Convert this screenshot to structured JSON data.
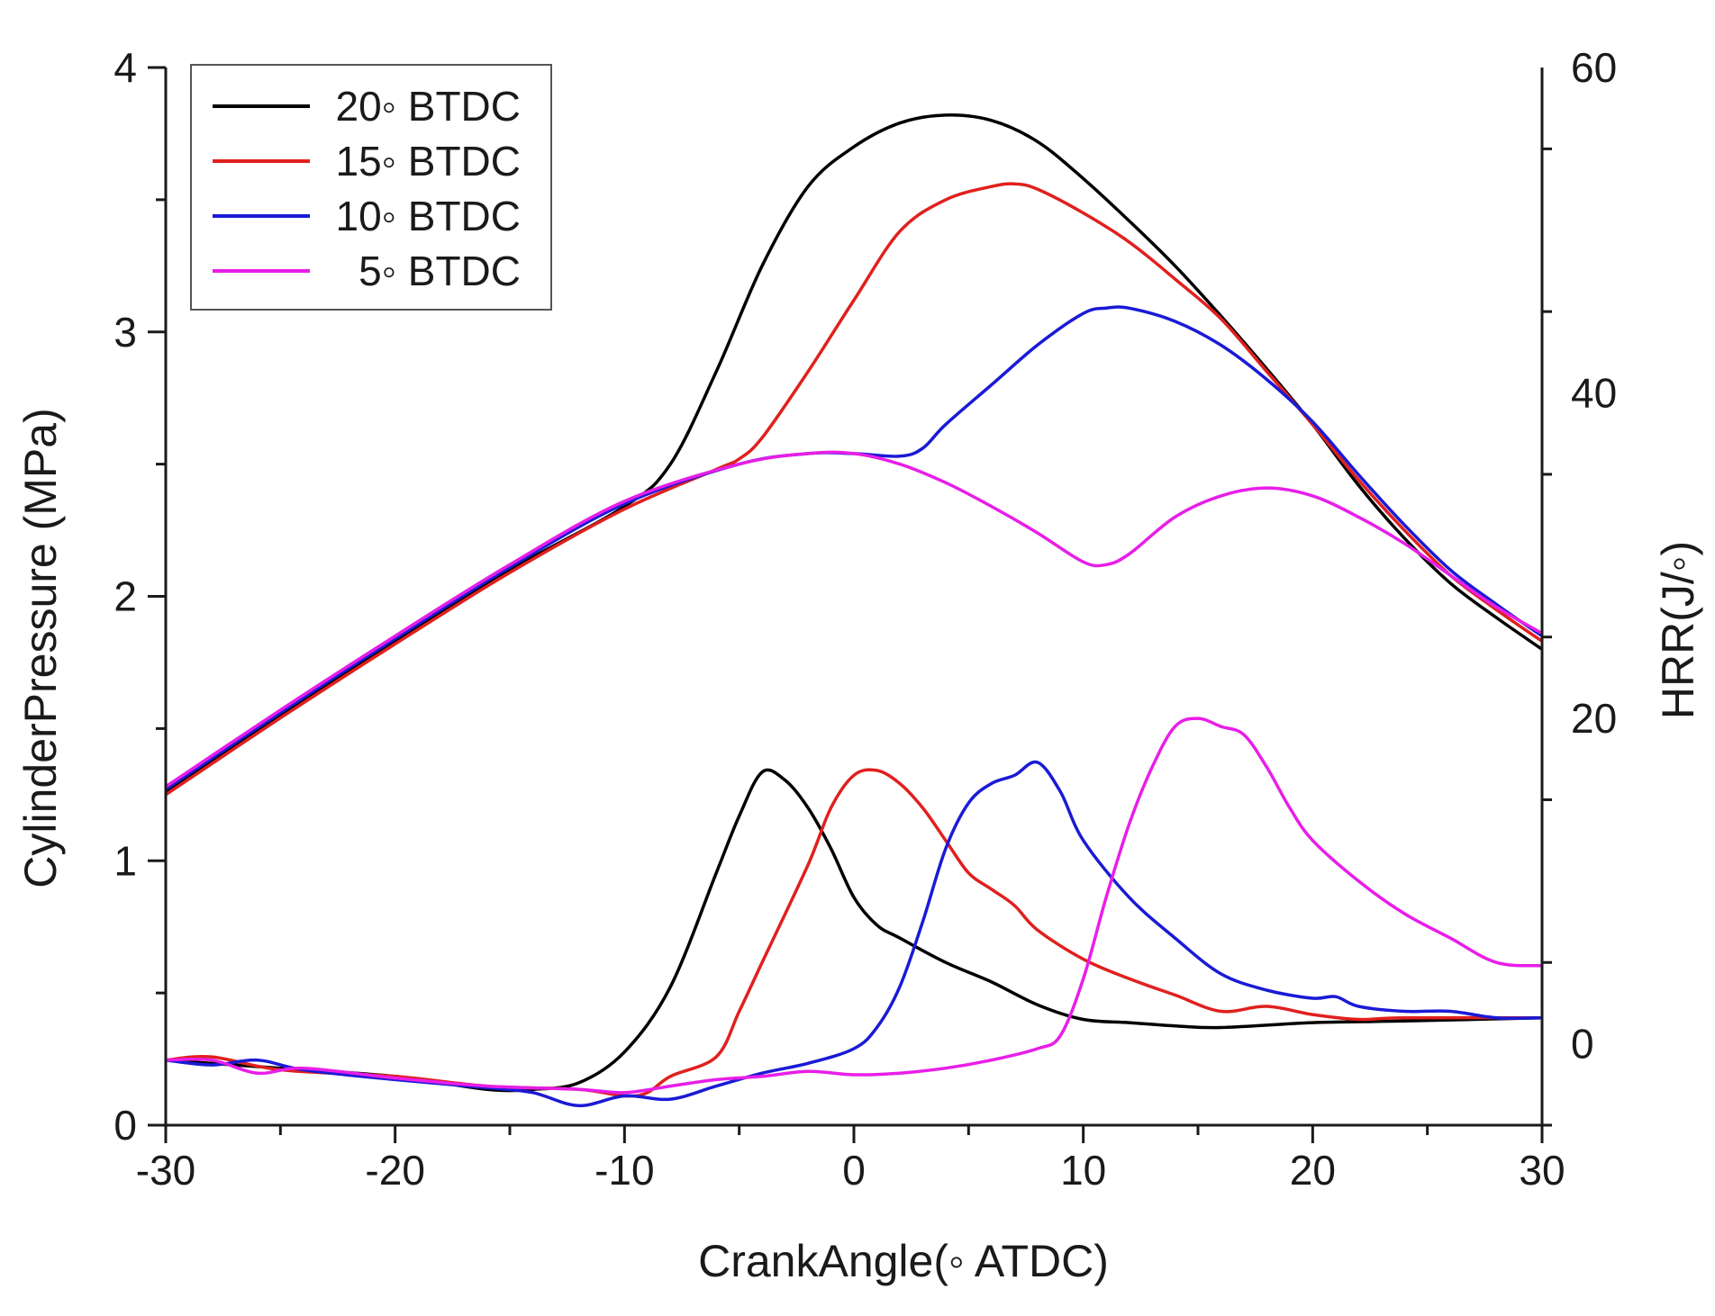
{
  "chart_data": {
    "type": "line",
    "xlabel": "CrankAngle(◦ ATDC)",
    "ylabel_left": "CylinderPressure (MPa)",
    "ylabel_right": "HRR(J/◦)",
    "xlim": [
      -30,
      30
    ],
    "ylim_left": [
      0,
      4
    ],
    "ylim_right": [
      -5,
      60
    ],
    "x_ticks": [
      -30,
      -20,
      -10,
      0,
      10,
      20,
      30
    ],
    "x_tick_labels": [
      "-30",
      "-20",
      "-10",
      "0",
      "10",
      "20",
      "30"
    ],
    "y_left_ticks": [
      0,
      1,
      2,
      3,
      4
    ],
    "y_left_tick_labels": [
      "0",
      "1",
      "2",
      "3",
      "4"
    ],
    "y_right_ticks": [
      0,
      20,
      40,
      60
    ],
    "y_right_tick_labels": [
      "0",
      "20",
      "40",
      "60"
    ],
    "grid": false,
    "legend_position": "top-left",
    "series": [
      {
        "name": "20◦ BTDC",
        "color": "#000000",
        "pressure": [
          [
            -30,
            1.26
          ],
          [
            -25,
            1.55
          ],
          [
            -20,
            1.83
          ],
          [
            -15,
            2.1
          ],
          [
            -10,
            2.34
          ],
          [
            -8,
            2.5
          ],
          [
            -6,
            2.85
          ],
          [
            -4,
            3.25
          ],
          [
            -2,
            3.55
          ],
          [
            0,
            3.7
          ],
          [
            2,
            3.79
          ],
          [
            4,
            3.82
          ],
          [
            6,
            3.8
          ],
          [
            8,
            3.72
          ],
          [
            10,
            3.58
          ],
          [
            12,
            3.42
          ],
          [
            14,
            3.25
          ],
          [
            16,
            3.06
          ],
          [
            18,
            2.86
          ],
          [
            20,
            2.65
          ],
          [
            22,
            2.42
          ],
          [
            24,
            2.22
          ],
          [
            26,
            2.05
          ],
          [
            28,
            1.92
          ],
          [
            30,
            1.8
          ]
        ],
        "hrr": [
          [
            -30,
            -1
          ],
          [
            -25,
            -1.5
          ],
          [
            -20,
            -2
          ],
          [
            -16,
            -2.8
          ],
          [
            -14,
            -2.8
          ],
          [
            -12,
            -2.4
          ],
          [
            -10,
            -0.5
          ],
          [
            -8,
            3.5
          ],
          [
            -6,
            10.5
          ],
          [
            -5,
            14
          ],
          [
            -4,
            16.7
          ],
          [
            -3,
            16.2
          ],
          [
            -2,
            14.5
          ],
          [
            -1,
            12
          ],
          [
            0,
            9
          ],
          [
            1,
            7.3
          ],
          [
            2,
            6.5
          ],
          [
            4,
            5
          ],
          [
            6,
            3.8
          ],
          [
            8,
            2.4
          ],
          [
            10,
            1.5
          ],
          [
            12,
            1.3
          ],
          [
            14,
            1.1
          ],
          [
            16,
            1
          ],
          [
            20,
            1.3
          ],
          [
            24,
            1.4
          ],
          [
            30,
            1.6
          ]
        ]
      },
      {
        "name": "15◦ BTDC",
        "color": "#e0201e",
        "pressure": [
          [
            -30,
            1.25
          ],
          [
            -25,
            1.54
          ],
          [
            -20,
            1.82
          ],
          [
            -15,
            2.09
          ],
          [
            -10,
            2.33
          ],
          [
            -6,
            2.48
          ],
          [
            -5,
            2.52
          ],
          [
            -4,
            2.6
          ],
          [
            -2,
            2.85
          ],
          [
            0,
            3.12
          ],
          [
            2,
            3.38
          ],
          [
            4,
            3.5
          ],
          [
            6,
            3.55
          ],
          [
            7,
            3.56
          ],
          [
            8,
            3.54
          ],
          [
            10,
            3.45
          ],
          [
            12,
            3.34
          ],
          [
            14,
            3.2
          ],
          [
            16,
            3.05
          ],
          [
            18,
            2.85
          ],
          [
            20,
            2.65
          ],
          [
            22,
            2.44
          ],
          [
            24,
            2.25
          ],
          [
            26,
            2.08
          ],
          [
            28,
            1.95
          ],
          [
            30,
            1.83
          ]
        ],
        "hrr": [
          [
            -30,
            -1
          ],
          [
            -28,
            -0.8
          ],
          [
            -25,
            -1.6
          ],
          [
            -20,
            -2
          ],
          [
            -16,
            -2.6
          ],
          [
            -12,
            -2.8
          ],
          [
            -10,
            -3.2
          ],
          [
            -9,
            -3
          ],
          [
            -8,
            -2
          ],
          [
            -6,
            -0.8
          ],
          [
            -5,
            2
          ],
          [
            -4,
            5
          ],
          [
            -2,
            11
          ],
          [
            -1,
            14.5
          ],
          [
            0,
            16.5
          ],
          [
            1,
            16.8
          ],
          [
            2,
            16
          ],
          [
            3,
            14.5
          ],
          [
            4,
            12.5
          ],
          [
            5,
            10.5
          ],
          [
            6,
            9.5
          ],
          [
            7,
            8.5
          ],
          [
            8,
            7
          ],
          [
            10,
            5.2
          ],
          [
            12,
            4
          ],
          [
            14,
            3
          ],
          [
            16,
            2
          ],
          [
            18,
            2.3
          ],
          [
            20,
            1.8
          ],
          [
            22,
            1.5
          ],
          [
            24,
            1.6
          ],
          [
            30,
            1.6
          ]
        ]
      },
      {
        "name": "10◦ BTDC",
        "color": "#1a1ad6",
        "pressure": [
          [
            -30,
            1.27
          ],
          [
            -25,
            1.56
          ],
          [
            -20,
            1.84
          ],
          [
            -15,
            2.11
          ],
          [
            -10,
            2.35
          ],
          [
            -5,
            2.5
          ],
          [
            -2,
            2.54
          ],
          [
            0,
            2.54
          ],
          [
            2,
            2.53
          ],
          [
            3,
            2.56
          ],
          [
            4,
            2.65
          ],
          [
            6,
            2.8
          ],
          [
            8,
            2.95
          ],
          [
            10,
            3.07
          ],
          [
            11,
            3.09
          ],
          [
            12,
            3.09
          ],
          [
            14,
            3.04
          ],
          [
            16,
            2.95
          ],
          [
            18,
            2.82
          ],
          [
            20,
            2.66
          ],
          [
            22,
            2.46
          ],
          [
            24,
            2.27
          ],
          [
            26,
            2.1
          ],
          [
            28,
            1.97
          ],
          [
            30,
            1.85
          ]
        ],
        "hrr": [
          [
            -30,
            -1
          ],
          [
            -28,
            -1.3
          ],
          [
            -26,
            -1
          ],
          [
            -24,
            -1.6
          ],
          [
            -20,
            -2.2
          ],
          [
            -16,
            -2.7
          ],
          [
            -14,
            -3
          ],
          [
            -12,
            -3.8
          ],
          [
            -10,
            -3.2
          ],
          [
            -8,
            -3.4
          ],
          [
            -6,
            -2.6
          ],
          [
            -4,
            -1.8
          ],
          [
            -2,
            -1.2
          ],
          [
            0,
            -0.3
          ],
          [
            1,
            1
          ],
          [
            2,
            3.5
          ],
          [
            3,
            7.5
          ],
          [
            4,
            12
          ],
          [
            5,
            14.8
          ],
          [
            6,
            16
          ],
          [
            7,
            16.5
          ],
          [
            8,
            17.3
          ],
          [
            9,
            15.5
          ],
          [
            10,
            12.5
          ],
          [
            12,
            9
          ],
          [
            14,
            6.5
          ],
          [
            16,
            4.3
          ],
          [
            18,
            3.3
          ],
          [
            20,
            2.8
          ],
          [
            21,
            2.9
          ],
          [
            22,
            2.3
          ],
          [
            24,
            2
          ],
          [
            26,
            2
          ],
          [
            28,
            1.6
          ],
          [
            30,
            1.6
          ]
        ]
      },
      {
        "name": "5◦ BTDC",
        "color": "#e81ee8",
        "pressure": [
          [
            -30,
            1.28
          ],
          [
            -25,
            1.57
          ],
          [
            -20,
            1.85
          ],
          [
            -15,
            2.12
          ],
          [
            -10,
            2.36
          ],
          [
            -5,
            2.5
          ],
          [
            -2,
            2.54
          ],
          [
            0,
            2.54
          ],
          [
            2,
            2.5
          ],
          [
            4,
            2.43
          ],
          [
            6,
            2.34
          ],
          [
            8,
            2.24
          ],
          [
            10,
            2.13
          ],
          [
            11,
            2.12
          ],
          [
            12,
            2.16
          ],
          [
            14,
            2.3
          ],
          [
            16,
            2.38
          ],
          [
            18,
            2.41
          ],
          [
            20,
            2.38
          ],
          [
            22,
            2.3
          ],
          [
            24,
            2.2
          ],
          [
            26,
            2.08
          ],
          [
            28,
            1.96
          ],
          [
            30,
            1.86
          ]
        ],
        "hrr": [
          [
            -30,
            -1
          ],
          [
            -28,
            -1
          ],
          [
            -26,
            -1.8
          ],
          [
            -24,
            -1.5
          ],
          [
            -20,
            -2.1
          ],
          [
            -16,
            -2.6
          ],
          [
            -12,
            -2.8
          ],
          [
            -10,
            -3
          ],
          [
            -8,
            -2.6
          ],
          [
            -6,
            -2.2
          ],
          [
            -4,
            -2
          ],
          [
            -2,
            -1.7
          ],
          [
            0,
            -1.9
          ],
          [
            2,
            -1.8
          ],
          [
            4,
            -1.5
          ],
          [
            6,
            -1
          ],
          [
            8,
            -0.3
          ],
          [
            9,
            0.5
          ],
          [
            10,
            4
          ],
          [
            11,
            9
          ],
          [
            12,
            13.5
          ],
          [
            13,
            17
          ],
          [
            14,
            19.5
          ],
          [
            15,
            20
          ],
          [
            16,
            19.5
          ],
          [
            17,
            19
          ],
          [
            18,
            17
          ],
          [
            19,
            14.5
          ],
          [
            20,
            12.5
          ],
          [
            22,
            10
          ],
          [
            24,
            8
          ],
          [
            26,
            6.5
          ],
          [
            28,
            5
          ],
          [
            30,
            4.8
          ]
        ]
      }
    ]
  }
}
